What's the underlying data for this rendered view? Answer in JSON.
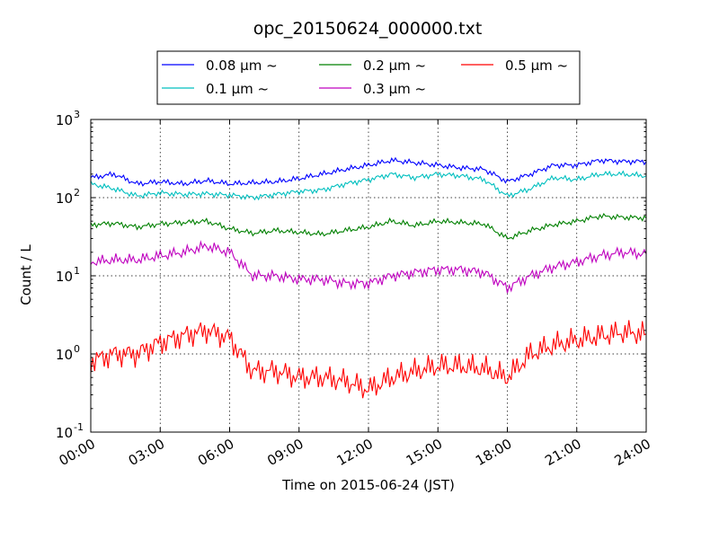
{
  "chart_data": {
    "type": "line",
    "title": "opc_20150624_000000.txt",
    "xlabel": "Time on 2015-06-24 (JST)",
    "ylabel": "Count / L",
    "yscale": "log",
    "ylim": [
      0.1,
      1000
    ],
    "xlim": [
      "00:00",
      "24:00"
    ],
    "x_ticks": [
      "00:00",
      "03:00",
      "06:00",
      "09:00",
      "12:00",
      "15:00",
      "18:00",
      "21:00",
      "24:00"
    ],
    "y_ticks": [
      {
        "base": "10",
        "exp": "-1",
        "value": 0.1
      },
      {
        "base": "10",
        "exp": "0",
        "value": 1
      },
      {
        "base": "10",
        "exp": "1",
        "value": 10
      },
      {
        "base": "10",
        "exp": "2",
        "value": 100
      },
      {
        "base": "10",
        "exp": "3",
        "value": 1000
      }
    ],
    "grid": true,
    "legend": {
      "placement": "top-center, above plot",
      "columns": 3
    },
    "x": [
      "00:00",
      "01:00",
      "02:00",
      "03:00",
      "04:00",
      "05:00",
      "06:00",
      "07:00",
      "08:00",
      "09:00",
      "10:00",
      "11:00",
      "12:00",
      "13:00",
      "14:00",
      "15:00",
      "16:00",
      "17:00",
      "18:00",
      "19:00",
      "20:00",
      "21:00",
      "22:00",
      "23:00",
      "24:00"
    ],
    "series": [
      {
        "name": "0.08 μm ~",
        "color": "#0000ff",
        "values": [
          180,
          200,
          150,
          160,
          150,
          165,
          150,
          155,
          160,
          175,
          200,
          230,
          260,
          300,
          280,
          260,
          240,
          230,
          160,
          200,
          260,
          260,
          300,
          290,
          290
        ]
      },
      {
        "name": "0.1 μm ~",
        "color": "#00bfbf",
        "values": [
          150,
          130,
          105,
          115,
          110,
          112,
          108,
          100,
          110,
          120,
          125,
          150,
          170,
          200,
          180,
          200,
          190,
          170,
          105,
          130,
          180,
          170,
          200,
          200,
          190
        ]
      },
      {
        "name": "0.2 μm ~",
        "color": "#008000",
        "values": [
          45,
          47,
          42,
          46,
          48,
          50,
          40,
          35,
          38,
          36,
          34,
          38,
          42,
          50,
          44,
          50,
          48,
          46,
          30,
          38,
          45,
          50,
          58,
          56,
          55
        ]
      },
      {
        "name": "0.3 μm ~",
        "color": "#bf00bf",
        "values": [
          15,
          16,
          16,
          18,
          20,
          24,
          20,
          10,
          10,
          9,
          9,
          8,
          8,
          10,
          11,
          12,
          12,
          11,
          7,
          10,
          13,
          15,
          18,
          20,
          19
        ]
      },
      {
        "name": "0.5 μm ~",
        "color": "#ff0000",
        "values": [
          0.8,
          1.0,
          1.0,
          1.4,
          1.7,
          2.0,
          1.6,
          0.6,
          0.6,
          0.5,
          0.5,
          0.45,
          0.35,
          0.5,
          0.6,
          0.7,
          0.7,
          0.65,
          0.5,
          1.0,
          1.3,
          1.5,
          1.7,
          1.9,
          1.8
        ]
      }
    ]
  }
}
